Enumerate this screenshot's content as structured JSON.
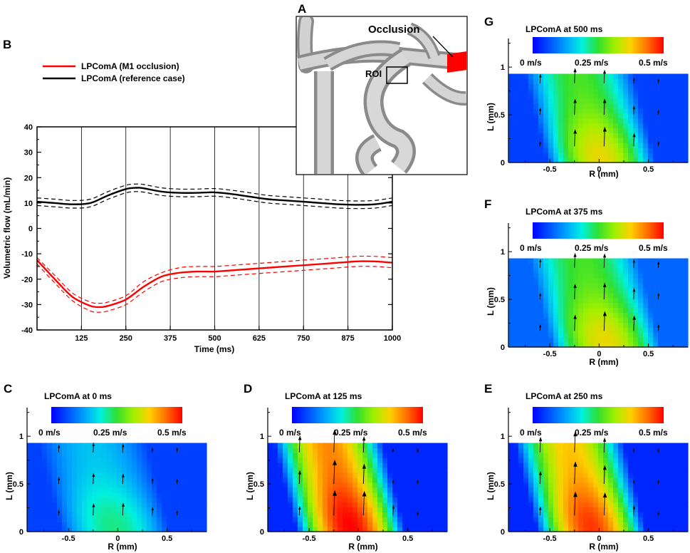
{
  "panel_letters": {
    "A": "A",
    "B": "B",
    "C": "C",
    "D": "D",
    "E": "E",
    "F": "F",
    "G": "G"
  },
  "inset": {
    "occlusion_label": "Occlusion",
    "roi_label": "ROI",
    "occlusion_color": "#ff0000",
    "vessel_color": "#c4c4c4"
  },
  "chart_data": [
    {
      "panel": "B",
      "type": "line",
      "title": "",
      "xlabel": "Time (ms)",
      "ylabel": "Volumetric flow (mL/min)",
      "xlim": [
        0,
        1000
      ],
      "ylim": [
        -40,
        40
      ],
      "xticks": [
        125,
        250,
        375,
        500,
        625,
        750,
        875,
        1000
      ],
      "yticks": [
        40,
        30,
        20,
        10,
        0,
        -10,
        -20,
        -30,
        -40
      ],
      "vertical_gridlines": [
        125,
        250,
        375,
        500,
        625,
        750,
        875
      ],
      "legend_position": "top-left",
      "series": [
        {
          "name": "LPComA (M1 occlusion)",
          "color": "#ff0000",
          "x": [
            0,
            50,
            100,
            150,
            175,
            200,
            250,
            300,
            350,
            400,
            450,
            500,
            550,
            600,
            650,
            700,
            750,
            800,
            850,
            900,
            950,
            1000
          ],
          "mean": [
            -12.5,
            -20,
            -27,
            -30.5,
            -31,
            -30.5,
            -28,
            -23,
            -19,
            -17.5,
            -17,
            -17,
            -16.5,
            -16,
            -15.5,
            -15,
            -14.5,
            -14,
            -13.5,
            -13,
            -13,
            -13.5
          ],
          "upper": [
            -11.5,
            -18.5,
            -25.5,
            -29,
            -29.5,
            -29,
            -26.5,
            -21,
            -17.5,
            -15.5,
            -15,
            -15,
            -14.5,
            -14,
            -13.5,
            -13,
            -12.5,
            -12,
            -11.5,
            -11,
            -11,
            -11.5
          ],
          "lower": [
            -14,
            -21.5,
            -28.5,
            -32.5,
            -33,
            -32.5,
            -30,
            -25,
            -21,
            -19.5,
            -19,
            -19,
            -18.5,
            -18,
            -17.5,
            -17,
            -16.5,
            -16,
            -15.5,
            -15,
            -15,
            -15.5
          ]
        },
        {
          "name": "LPComA (reference case)",
          "color": "#000000",
          "x": [
            0,
            50,
            100,
            150,
            200,
            250,
            280,
            300,
            350,
            400,
            450,
            500,
            550,
            600,
            650,
            700,
            750,
            800,
            850,
            900,
            950,
            1000
          ],
          "mean": [
            10.5,
            10,
            9.5,
            10,
            13,
            15.5,
            16,
            15.8,
            14.5,
            14,
            14,
            14.2,
            13.5,
            12.5,
            11.5,
            11,
            10.5,
            10,
            9.5,
            9.3,
            9.5,
            10.5
          ],
          "upper": [
            12,
            11.5,
            11,
            11.5,
            14.5,
            17,
            17.5,
            17.3,
            16,
            15.5,
            15.5,
            15.7,
            15,
            14,
            13,
            12.5,
            12,
            11.5,
            11,
            10.8,
            11,
            12
          ],
          "lower": [
            9,
            8.5,
            8,
            8.5,
            11.5,
            14,
            14.5,
            14.3,
            13,
            12.5,
            12.5,
            12.7,
            12,
            11,
            10,
            9.5,
            9,
            8.5,
            8,
            7.8,
            8,
            9
          ]
        }
      ]
    },
    {
      "panel": "C",
      "type": "heatmap",
      "title": "LPComA at 0 ms",
      "xlabel": "R (mm)",
      "ylabel": "L (mm)",
      "xticks": [
        -0.5,
        0,
        0.5
      ],
      "xtick_labels": [
        "-0.5",
        "0",
        "0.5"
      ],
      "yticks": [
        0,
        0.5,
        1
      ],
      "ytick_labels": [
        "0",
        "0.5",
        "1"
      ],
      "xlim": [
        -0.92,
        0.9
      ],
      "ylim": [
        0,
        1.3
      ],
      "domain_top": 0.93,
      "colorbar": {
        "labels": [
          "0 m/s",
          "0.25 m/s",
          "0.5 m/s"
        ],
        "range": [
          0,
          0.5
        ]
      },
      "arrow_x": [
        -0.6,
        -0.25,
        0.05,
        0.35,
        0.6
      ],
      "arrow_y": [
        0.17,
        0.5,
        0.83
      ],
      "velocity_profile": {
        "peak_x": -0.1,
        "peak_speed": 0.22,
        "core_speed": 0.15,
        "edge_speed": 0.05
      }
    },
    {
      "panel": "D",
      "type": "heatmap",
      "title": "LPComA at 125 ms",
      "xlabel": "R (mm)",
      "ylabel": "L (mm)",
      "xticks": [
        -0.5,
        0,
        0.5
      ],
      "xtick_labels": [
        "-0.5",
        "0",
        "0.5"
      ],
      "yticks": [
        0,
        0.5,
        1
      ],
      "ytick_labels": [
        "0",
        "0.5",
        "1"
      ],
      "xlim": [
        -0.92,
        0.9
      ],
      "ylim": [
        0,
        1.3
      ],
      "domain_top": 0.93,
      "colorbar": {
        "labels": [
          "0 m/s",
          "0.25 m/s",
          "0.5 m/s"
        ],
        "range": [
          0,
          0.5
        ]
      },
      "arrow_x": [
        -0.6,
        -0.25,
        0.05,
        0.35,
        0.6
      ],
      "arrow_y": [
        0.17,
        0.5,
        0.83
      ],
      "velocity_profile": {
        "peak_x": -0.15,
        "peak_speed": 0.5,
        "core_speed": 0.42,
        "edge_speed": 0.03
      }
    },
    {
      "panel": "E",
      "type": "heatmap",
      "title": "LPComA at 250 ms",
      "xlabel": "R (mm)",
      "ylabel": "L (mm)",
      "xticks": [
        -0.5,
        0,
        0.5
      ],
      "xtick_labels": [
        "-0.5",
        "0",
        "0.5"
      ],
      "yticks": [
        0,
        0.5,
        1
      ],
      "ytick_labels": [
        "0",
        "0.5",
        "1"
      ],
      "xlim": [
        -0.92,
        0.9
      ],
      "ylim": [
        0,
        1.3
      ],
      "domain_top": 0.93,
      "colorbar": {
        "labels": [
          "0 m/s",
          "0.25 m/s",
          "0.5 m/s"
        ],
        "range": [
          0,
          0.5
        ]
      },
      "arrow_x": [
        -0.6,
        -0.25,
        0.05,
        0.35,
        0.6
      ],
      "arrow_y": [
        0.17,
        0.5,
        0.83
      ],
      "velocity_profile": {
        "peak_x": -0.15,
        "peak_speed": 0.47,
        "core_speed": 0.38,
        "edge_speed": 0.03
      }
    },
    {
      "panel": "F",
      "type": "heatmap",
      "title": "LPComA at 375 ms",
      "xlabel": "R (mm)",
      "ylabel": "L (mm)",
      "xticks": [
        -0.5,
        0,
        0.5
      ],
      "xtick_labels": [
        "-0.5",
        "0",
        "0.5"
      ],
      "yticks": [
        0,
        0.5,
        1
      ],
      "ytick_labels": [
        "0",
        "0.5",
        "1"
      ],
      "xlim": [
        -0.92,
        0.9
      ],
      "ylim": [
        0,
        1.3
      ],
      "domain_top": 0.93,
      "colorbar": {
        "labels": [
          "0 m/s",
          "0.25 m/s",
          "0.5 m/s"
        ],
        "range": [
          0,
          0.5
        ]
      },
      "arrow_x": [
        -0.6,
        -0.25,
        0.05,
        0.35,
        0.6
      ],
      "arrow_y": [
        0.17,
        0.5,
        0.83
      ],
      "velocity_profile": {
        "peak_x": 0.0,
        "peak_speed": 0.36,
        "core_speed": 0.26,
        "edge_speed": 0.08
      }
    },
    {
      "panel": "G",
      "type": "heatmap",
      "title": "LPComA at 500 ms",
      "xlabel": "R (mm)",
      "ylabel": "L (mm)",
      "xticks": [
        -0.5,
        0,
        0.5
      ],
      "xtick_labels": [
        "-0.5",
        "0",
        "0.5"
      ],
      "yticks": [
        0,
        0.5,
        1
      ],
      "ytick_labels": [
        "0",
        "0.5",
        "1"
      ],
      "xlim": [
        -0.92,
        0.9
      ],
      "ylim": [
        0,
        1.3
      ],
      "domain_top": 0.93,
      "colorbar": {
        "labels": [
          "0 m/s",
          "0.25 m/s",
          "0.5 m/s"
        ],
        "range": [
          0,
          0.5
        ]
      },
      "arrow_x": [
        -0.6,
        -0.25,
        0.05,
        0.35,
        0.6
      ],
      "arrow_y": [
        0.17,
        0.5,
        0.83
      ],
      "velocity_profile": {
        "peak_x": -0.05,
        "peak_speed": 0.36,
        "core_speed": 0.26,
        "edge_speed": 0.05
      }
    }
  ]
}
